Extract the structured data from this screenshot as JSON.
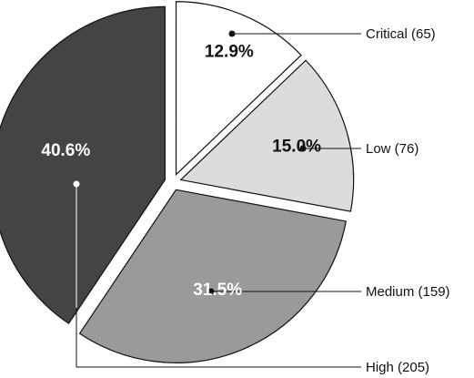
{
  "chart_data": {
    "type": "pie",
    "title": "",
    "slices": [
      {
        "label": "Critical (65)",
        "value": 65,
        "percent_label": "12.9%",
        "color": "#ffffff",
        "text_color": "#111111"
      },
      {
        "label": "Low (76)",
        "value": 76,
        "percent_label": "15.0%",
        "color": "#dcdcdc",
        "text_color": "#111111"
      },
      {
        "label": "Medium (159)",
        "value": 159,
        "percent_label": "31.5%",
        "color": "#9a9a9a",
        "text_color": "#ffffff"
      },
      {
        "label": "High (205)",
        "value": 205,
        "percent_label": "40.6%",
        "color": "#444444",
        "text_color": "#ffffff"
      }
    ],
    "start_angle_deg": 0,
    "direction": "clockwise",
    "exploded": true,
    "label_position": "right"
  }
}
